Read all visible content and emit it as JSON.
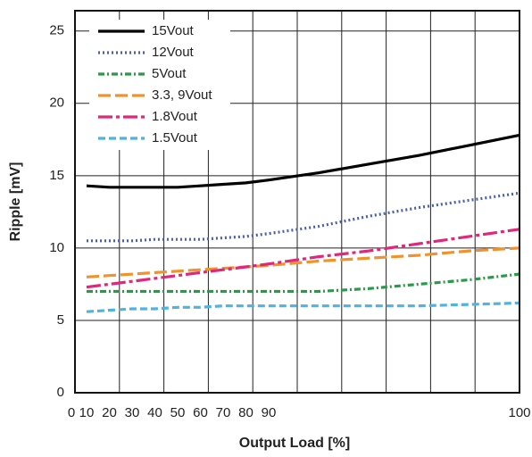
{
  "chart_data": {
    "type": "line",
    "y_label": "Ripple [mV]",
    "x_label": "Output Load [%]",
    "x": [
      10,
      20,
      30,
      40,
      50,
      60,
      70,
      80,
      90,
      92,
      94,
      96,
      98,
      100
    ],
    "series": [
      {
        "name": "15Vout",
        "color": "#000000",
        "dash": "none",
        "values": [
          14.3,
          14.2,
          14.2,
          14.2,
          14.2,
          14.3,
          14.4,
          14.5,
          14.7,
          15.2,
          15.8,
          16.4,
          17.1,
          17.8
        ]
      },
      {
        "name": "12Vout",
        "color": "#4a5fae",
        "dash": "2,3",
        "values": [
          10.5,
          10.5,
          10.5,
          10.6,
          10.6,
          10.6,
          10.7,
          10.8,
          11.0,
          11.5,
          12.2,
          12.8,
          13.3,
          13.8
        ]
      },
      {
        "name": "5Vout",
        "color": "#2a9a48",
        "dash": "7,3,2,3",
        "values": [
          7.0,
          7.0,
          7.0,
          7.0,
          7.0,
          7.0,
          7.0,
          7.0,
          7.0,
          7.0,
          7.2,
          7.5,
          7.8,
          8.2
        ]
      },
      {
        "name": "3.3, 9Vout",
        "color": "#f0932a",
        "dash": "14,5",
        "values": [
          8.0,
          8.1,
          8.2,
          8.3,
          8.4,
          8.5,
          8.6,
          8.7,
          8.8,
          9.1,
          9.3,
          9.5,
          9.8,
          10.0
        ]
      },
      {
        "name": "1.8Vout",
        "color": "#e0277a",
        "dash": "16,4,4,4",
        "values": [
          7.3,
          7.5,
          7.7,
          7.9,
          8.1,
          8.3,
          8.5,
          8.7,
          8.9,
          9.4,
          9.8,
          10.3,
          10.8,
          11.3
        ]
      },
      {
        "name": "1.5Vout",
        "color": "#4fb3e0",
        "dash": "8,4",
        "values": [
          5.6,
          5.7,
          5.8,
          5.8,
          5.9,
          5.9,
          6.0,
          6.0,
          6.0,
          6.0,
          6.0,
          6.0,
          6.1,
          6.2
        ]
      }
    ],
    "xlim": [
      0,
      100
    ],
    "xticks": [
      0,
      10,
      20,
      30,
      40,
      50,
      60,
      70,
      80,
      90,
      100
    ],
    "ylim": [
      0,
      26.4
    ],
    "yticks": [
      0,
      5,
      10,
      15,
      20,
      25
    ],
    "grid": true,
    "legend": "upper-left"
  }
}
